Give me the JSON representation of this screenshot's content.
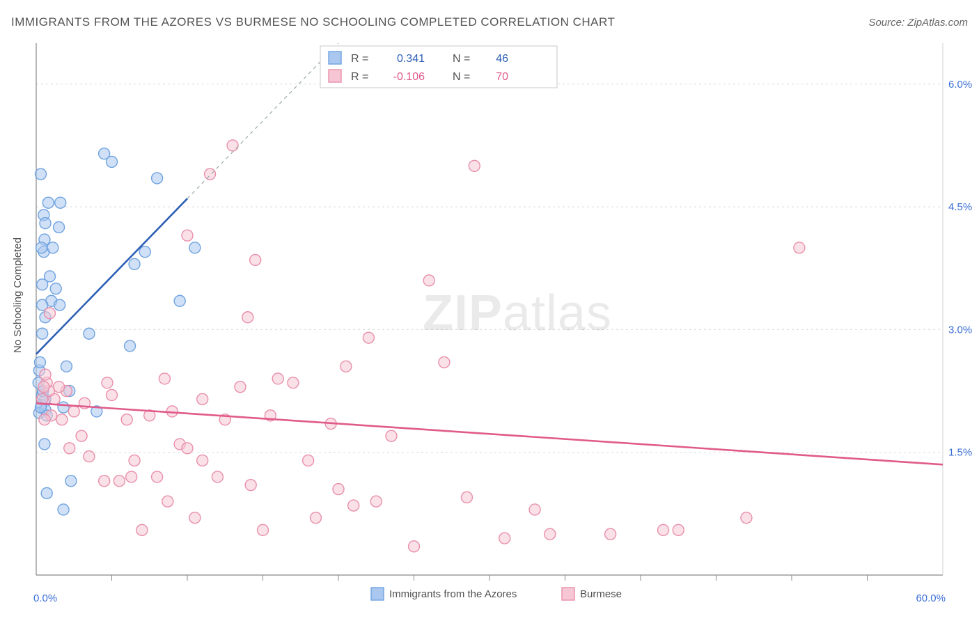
{
  "title": "IMMIGRANTS FROM THE AZORES VS BURMESE NO SCHOOLING COMPLETED CORRELATION CHART",
  "source": "Source: ZipAtlas.com",
  "watermark": {
    "part1": "ZIP",
    "part2": "atlas"
  },
  "chart": {
    "type": "scatter",
    "xlabel": null,
    "ylabel": "No Schooling Completed",
    "xlim": [
      0,
      60
    ],
    "ylim": [
      0,
      6.5
    ],
    "xtick_labels": {
      "min": "0.0%",
      "max": "60.0%"
    },
    "ytick_values": [
      1.5,
      3.0,
      4.5,
      6.0
    ],
    "xtick_marks": [
      5,
      10,
      15,
      20,
      25,
      30,
      35,
      40,
      45,
      50,
      55
    ],
    "grid_color": "#d9d9d9",
    "axis_color": "#888",
    "background": "#ffffff",
    "marker_radius": 8,
    "marker_stroke_width": 1.4,
    "series": [
      {
        "name": "Immigrants from the Azores",
        "color_fill": "#a9c7ef",
        "color_stroke": "#6fa3e0",
        "line_color": "#2d5fb5",
        "trend": {
          "x1": 0,
          "y1": 2.7,
          "x2": 10,
          "y2": 4.6,
          "dashed_extend": {
            "x2": 20,
            "y2": 6.5
          }
        },
        "R": "0.341",
        "N": "46",
        "points": [
          [
            0.3,
            4.9
          ],
          [
            0.5,
            4.4
          ],
          [
            0.8,
            4.55
          ],
          [
            0.6,
            4.3
          ],
          [
            1.5,
            4.25
          ],
          [
            1.6,
            4.55
          ],
          [
            0.5,
            3.95
          ],
          [
            0.9,
            3.65
          ],
          [
            1.1,
            4.0
          ],
          [
            0.4,
            3.55
          ],
          [
            1.3,
            3.5
          ],
          [
            0.6,
            3.15
          ],
          [
            1.0,
            3.35
          ],
          [
            0.4,
            2.95
          ],
          [
            4.5,
            5.15
          ],
          [
            5.0,
            5.05
          ],
          [
            8.0,
            4.85
          ],
          [
            6.5,
            3.8
          ],
          [
            7.2,
            3.95
          ],
          [
            10.5,
            4.0
          ],
          [
            9.5,
            3.35
          ],
          [
            3.5,
            2.95
          ],
          [
            6.2,
            2.8
          ],
          [
            2.0,
            2.55
          ],
          [
            2.2,
            2.25
          ],
          [
            0.4,
            2.2
          ],
          [
            0.2,
            2.5
          ],
          [
            0.15,
            2.35
          ],
          [
            0.35,
            2.08
          ],
          [
            0.2,
            1.98
          ],
          [
            0.6,
            2.02
          ],
          [
            0.7,
            1.95
          ],
          [
            0.55,
            1.6
          ],
          [
            1.8,
            2.05
          ],
          [
            2.3,
            1.15
          ],
          [
            4.0,
            2.0
          ],
          [
            1.8,
            0.8
          ],
          [
            0.7,
            1.0
          ],
          [
            0.25,
            2.6
          ],
          [
            0.3,
            2.05
          ],
          [
            0.6,
            2.15
          ],
          [
            0.45,
            2.25
          ],
          [
            0.55,
            4.1
          ],
          [
            0.35,
            4.0
          ],
          [
            1.55,
            3.3
          ],
          [
            0.4,
            3.3
          ]
        ]
      },
      {
        "name": "Burmese",
        "color_fill": "#f6c6d4",
        "color_stroke": "#e98fab",
        "line_color": "#e05a8a",
        "trend": {
          "x1": 0,
          "y1": 2.1,
          "x2": 60,
          "y2": 1.35
        },
        "R": "-0.106",
        "N": "70",
        "points": [
          [
            13.0,
            5.25
          ],
          [
            11.5,
            4.9
          ],
          [
            10.0,
            4.15
          ],
          [
            14.5,
            3.85
          ],
          [
            14.0,
            3.15
          ],
          [
            22.0,
            2.9
          ],
          [
            20.5,
            2.55
          ],
          [
            26.0,
            3.6
          ],
          [
            27.0,
            2.6
          ],
          [
            29.0,
            5.0
          ],
          [
            50.5,
            4.0
          ],
          [
            34.0,
            0.5
          ],
          [
            38.0,
            0.5
          ],
          [
            41.5,
            0.55
          ],
          [
            42.5,
            0.55
          ],
          [
            47.0,
            0.7
          ],
          [
            33.0,
            0.8
          ],
          [
            31.0,
            0.45
          ],
          [
            28.5,
            0.95
          ],
          [
            25.0,
            0.35
          ],
          [
            23.5,
            1.7
          ],
          [
            20.0,
            1.05
          ],
          [
            22.5,
            0.9
          ],
          [
            21.0,
            0.85
          ],
          [
            18.5,
            0.7
          ],
          [
            19.5,
            1.85
          ],
          [
            17.0,
            2.35
          ],
          [
            18.0,
            1.4
          ],
          [
            16.0,
            2.4
          ],
          [
            15.0,
            0.55
          ],
          [
            12.5,
            1.9
          ],
          [
            12.0,
            1.2
          ],
          [
            11.0,
            1.4
          ],
          [
            10.5,
            0.7
          ],
          [
            9.5,
            1.6
          ],
          [
            8.5,
            2.4
          ],
          [
            9.0,
            2.0
          ],
          [
            8.0,
            1.2
          ],
          [
            7.0,
            0.55
          ],
          [
            6.5,
            1.4
          ],
          [
            6.0,
            1.9
          ],
          [
            5.5,
            1.15
          ],
          [
            5.0,
            2.2
          ],
          [
            4.5,
            1.15
          ],
          [
            4.7,
            2.35
          ],
          [
            3.5,
            1.45
          ],
          [
            3.2,
            2.1
          ],
          [
            3.0,
            1.7
          ],
          [
            2.5,
            2.0
          ],
          [
            2.2,
            1.55
          ],
          [
            2.0,
            2.25
          ],
          [
            1.7,
            1.9
          ],
          [
            1.5,
            2.3
          ],
          [
            1.2,
            2.15
          ],
          [
            1.0,
            1.95
          ],
          [
            0.85,
            2.25
          ],
          [
            0.7,
            2.35
          ],
          [
            0.6,
            2.45
          ],
          [
            0.5,
            2.3
          ],
          [
            0.4,
            2.15
          ],
          [
            0.55,
            1.9
          ],
          [
            0.9,
            3.2
          ],
          [
            13.5,
            2.3
          ],
          [
            15.5,
            1.95
          ],
          [
            7.5,
            1.95
          ],
          [
            6.3,
            1.2
          ],
          [
            11.0,
            2.15
          ],
          [
            10.0,
            1.55
          ],
          [
            8.7,
            0.9
          ],
          [
            14.2,
            1.1
          ]
        ]
      }
    ]
  },
  "legend_bottom": {
    "items": [
      {
        "label": "Immigrants from the Azores",
        "fill": "#a9c7ef",
        "stroke": "#6fa3e0"
      },
      {
        "label": "Burmese",
        "fill": "#f6c6d4",
        "stroke": "#e98fab"
      }
    ]
  }
}
